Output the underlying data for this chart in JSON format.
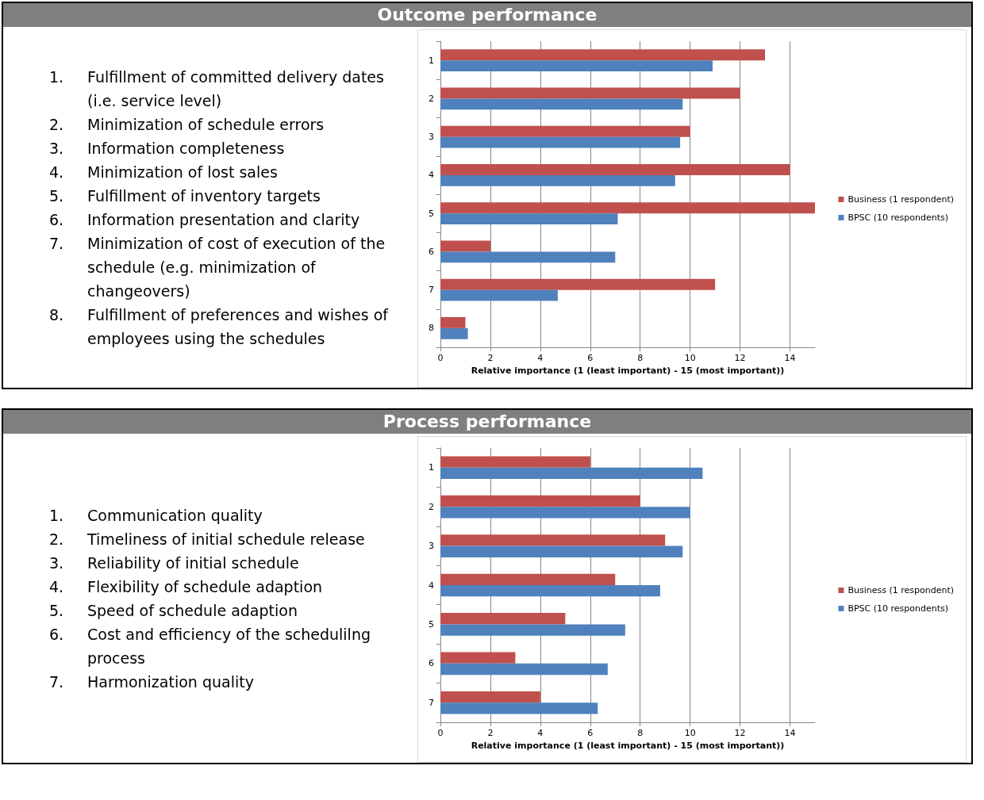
{
  "chart_data": [
    {
      "type": "bar",
      "orientation": "horizontal",
      "title": "Outcome performance",
      "xlabel": "Relative importance (1 (least important) - 15 (most important))",
      "categories": [
        "1",
        "2",
        "3",
        "4",
        "5",
        "6",
        "7",
        "8"
      ],
      "series": [
        {
          "name": "Business (1 respondent)",
          "color": "#c0504d",
          "values": [
            13,
            12,
            10,
            14,
            15,
            2,
            11,
            1
          ]
        },
        {
          "name": "BPSC (10 respondents)",
          "color": "#4f81bd",
          "values": [
            10.9,
            9.7,
            9.6,
            9.4,
            7.1,
            7.0,
            4.7,
            1.1
          ]
        }
      ],
      "xlim": [
        0,
        15
      ],
      "xticks": [
        0,
        2,
        4,
        6,
        8,
        10,
        12,
        14
      ],
      "grid": "x",
      "legend": "right",
      "annotations": [
        "1.\tFulfillment of committed delivery dates (i.e. service level)",
        "2.\tMinimization of schedule errors",
        "3.\tInformation completeness",
        "4.\tMinimization of lost sales",
        "5.\tFulfillment of inventory targets",
        "6.\tInformation presentation and clarity",
        "7.\tMinimization of cost of execution of the schedule (e.g. minimization of changeovers)",
        "8.\tFulfillment of preferences and wishes of employees using the schedules"
      ]
    },
    {
      "type": "bar",
      "orientation": "horizontal",
      "title": "Process performance",
      "xlabel": "Relative importance (1 (least important) - 15 (most important))",
      "categories": [
        "1",
        "2",
        "3",
        "4",
        "5",
        "6",
        "7"
      ],
      "series": [
        {
          "name": "Business (1 respondent)",
          "color": "#c0504d",
          "values": [
            6,
            8,
            9,
            7,
            5,
            3,
            4
          ]
        },
        {
          "name": "BPSC (10 respondents)",
          "color": "#4f81bd",
          "values": [
            10.5,
            10.0,
            9.7,
            8.8,
            7.4,
            6.7,
            6.3
          ]
        }
      ],
      "xlim": [
        0,
        15
      ],
      "xticks": [
        0,
        2,
        4,
        6,
        8,
        10,
        12,
        14
      ],
      "grid": "x",
      "legend": "right",
      "annotations": [
        "1.\tCommunication quality",
        "2.\tTimeliness of initial schedule release",
        "3.\tReliability of initial schedule",
        "4.\tFlexibility of schedule adaption",
        "5.\tSpeed of schedule adaption",
        "6.\tCost and efficiency of the schedulilng process",
        "7.\tHarmonization quality"
      ]
    }
  ]
}
